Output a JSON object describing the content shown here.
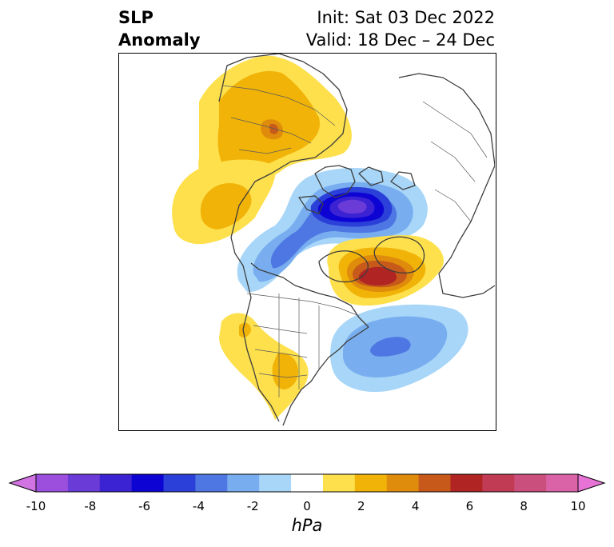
{
  "title": {
    "variable_line1": "SLP",
    "variable_line2": "Anomaly",
    "init": "Init: Sat 03 Dec 2022",
    "valid": "Valid: 18 Dec – 24 Dec"
  },
  "colorbar": {
    "unit": "hPa",
    "min": -10,
    "max": 10,
    "tick_labels": [
      "-10",
      "-8",
      "-6",
      "-4",
      "-2",
      "0",
      "2",
      "4",
      "6",
      "8",
      "10"
    ],
    "colors": [
      "#d273e3",
      "#9c4fdd",
      "#6b3bd8",
      "#3b23d3",
      "#0d04d4",
      "#2b3fd9",
      "#4e77e3",
      "#78aeef",
      "#a8d6f8",
      "#ffffff",
      "#fde04c",
      "#f1b308",
      "#df8c0c",
      "#c7591a",
      "#b02424",
      "#c23b55",
      "#cb4f7d",
      "#d963a6",
      "#e873d6"
    ]
  },
  "map": {
    "features": [
      "negative-anomaly-arctic-canada",
      "positive-anomaly-greenland",
      "positive-anomaly-siberia",
      "positive-anomaly-bering",
      "negative-anomaly-north-atlantic",
      "positive-anomaly-western-us"
    ]
  }
}
